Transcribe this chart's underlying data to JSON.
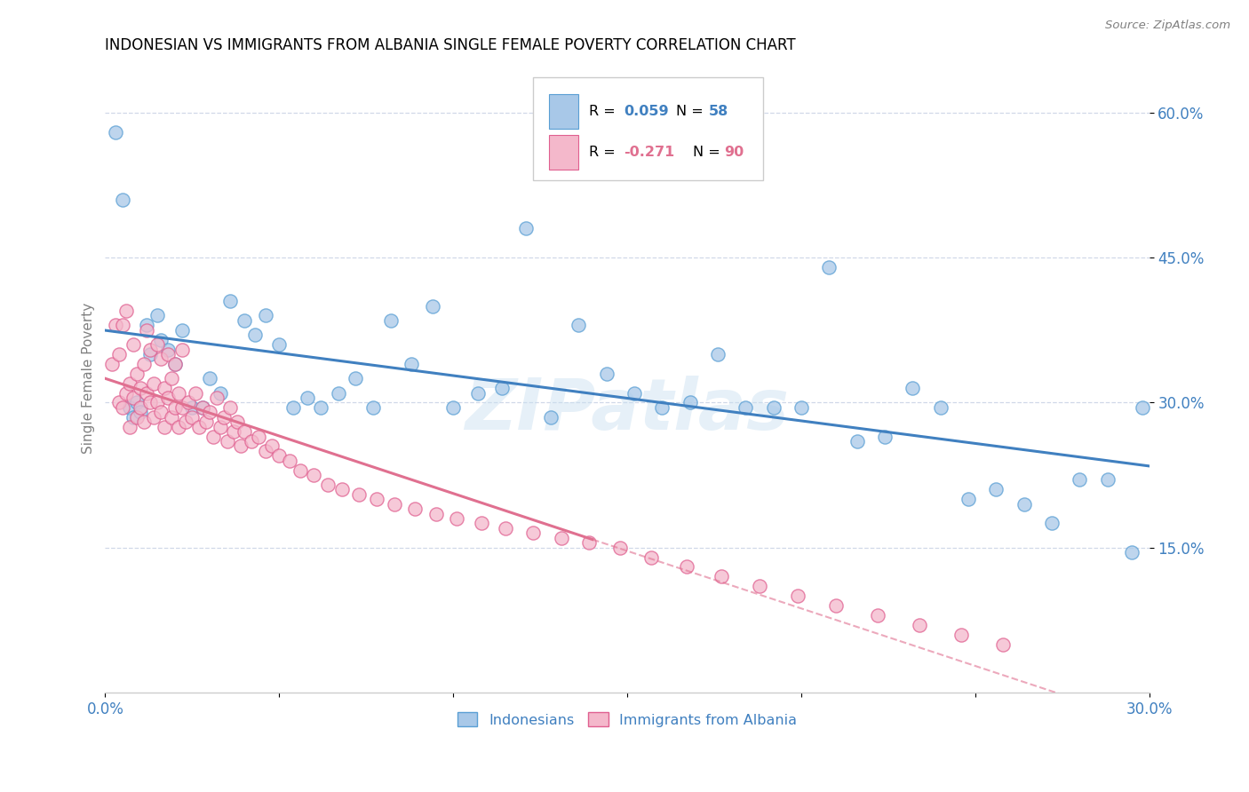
{
  "title": "INDONESIAN VS IMMIGRANTS FROM ALBANIA SINGLE FEMALE POVERTY CORRELATION CHART",
  "source": "Source: ZipAtlas.com",
  "ylabel": "Single Female Poverty",
  "xlim": [
    0.0,
    0.3
  ],
  "ylim": [
    0.0,
    0.65
  ],
  "xticks": [
    0.0,
    0.05,
    0.1,
    0.15,
    0.2,
    0.25,
    0.3
  ],
  "xtick_labels": [
    "0.0%",
    "",
    "",
    "",
    "",
    "",
    "30.0%"
  ],
  "yticks": [
    0.15,
    0.3,
    0.45,
    0.6
  ],
  "ytick_labels": [
    "15.0%",
    "30.0%",
    "45.0%",
    "60.0%"
  ],
  "watermark": "ZIPatlas",
  "color_blue": "#a8c8e8",
  "color_blue_edge": "#5a9fd4",
  "color_pink": "#f4b8cb",
  "color_pink_edge": "#e06090",
  "color_blue_line": "#4080c0",
  "color_pink_line": "#e07090",
  "color_tick_label": "#4080c0",
  "color_grid": "#d0d8e8",
  "indonesian_x": [
    0.003,
    0.005,
    0.007,
    0.008,
    0.009,
    0.01,
    0.012,
    0.013,
    0.015,
    0.016,
    0.018,
    0.02,
    0.022,
    0.025,
    0.028,
    0.03,
    0.033,
    0.036,
    0.04,
    0.043,
    0.046,
    0.05,
    0.054,
    0.058,
    0.062,
    0.067,
    0.072,
    0.077,
    0.082,
    0.088,
    0.094,
    0.1,
    0.107,
    0.114,
    0.121,
    0.128,
    0.136,
    0.144,
    0.152,
    0.16,
    0.168,
    0.176,
    0.184,
    0.192,
    0.2,
    0.208,
    0.216,
    0.224,
    0.232,
    0.24,
    0.248,
    0.256,
    0.264,
    0.272,
    0.28,
    0.288,
    0.295,
    0.298
  ],
  "indonesian_y": [
    0.58,
    0.51,
    0.295,
    0.285,
    0.3,
    0.29,
    0.38,
    0.35,
    0.39,
    0.365,
    0.355,
    0.34,
    0.375,
    0.295,
    0.295,
    0.325,
    0.31,
    0.405,
    0.385,
    0.37,
    0.39,
    0.36,
    0.295,
    0.305,
    0.295,
    0.31,
    0.325,
    0.295,
    0.385,
    0.34,
    0.4,
    0.295,
    0.31,
    0.315,
    0.48,
    0.285,
    0.38,
    0.33,
    0.31,
    0.295,
    0.3,
    0.35,
    0.295,
    0.295,
    0.295,
    0.44,
    0.26,
    0.265,
    0.315,
    0.295,
    0.2,
    0.21,
    0.195,
    0.175,
    0.22,
    0.22,
    0.145,
    0.295
  ],
  "albania_x": [
    0.002,
    0.003,
    0.004,
    0.004,
    0.005,
    0.005,
    0.006,
    0.006,
    0.007,
    0.007,
    0.008,
    0.008,
    0.009,
    0.009,
    0.01,
    0.01,
    0.011,
    0.011,
    0.012,
    0.012,
    0.013,
    0.013,
    0.014,
    0.014,
    0.015,
    0.015,
    0.016,
    0.016,
    0.017,
    0.017,
    0.018,
    0.018,
    0.019,
    0.019,
    0.02,
    0.02,
    0.021,
    0.021,
    0.022,
    0.022,
    0.023,
    0.024,
    0.025,
    0.026,
    0.027,
    0.028,
    0.029,
    0.03,
    0.031,
    0.032,
    0.033,
    0.034,
    0.035,
    0.036,
    0.037,
    0.038,
    0.039,
    0.04,
    0.042,
    0.044,
    0.046,
    0.048,
    0.05,
    0.053,
    0.056,
    0.06,
    0.064,
    0.068,
    0.073,
    0.078,
    0.083,
    0.089,
    0.095,
    0.101,
    0.108,
    0.115,
    0.123,
    0.131,
    0.139,
    0.148,
    0.157,
    0.167,
    0.177,
    0.188,
    0.199,
    0.21,
    0.222,
    0.234,
    0.246,
    0.258
  ],
  "albania_y": [
    0.34,
    0.38,
    0.3,
    0.35,
    0.295,
    0.38,
    0.31,
    0.395,
    0.32,
    0.275,
    0.305,
    0.36,
    0.285,
    0.33,
    0.315,
    0.295,
    0.34,
    0.28,
    0.31,
    0.375,
    0.3,
    0.355,
    0.285,
    0.32,
    0.3,
    0.36,
    0.29,
    0.345,
    0.275,
    0.315,
    0.305,
    0.35,
    0.285,
    0.325,
    0.295,
    0.34,
    0.275,
    0.31,
    0.295,
    0.355,
    0.28,
    0.3,
    0.285,
    0.31,
    0.275,
    0.295,
    0.28,
    0.29,
    0.265,
    0.305,
    0.275,
    0.285,
    0.26,
    0.295,
    0.27,
    0.28,
    0.255,
    0.27,
    0.26,
    0.265,
    0.25,
    0.255,
    0.245,
    0.24,
    0.23,
    0.225,
    0.215,
    0.21,
    0.205,
    0.2,
    0.195,
    0.19,
    0.185,
    0.18,
    0.175,
    0.17,
    0.165,
    0.16,
    0.155,
    0.15,
    0.14,
    0.13,
    0.12,
    0.11,
    0.1,
    0.09,
    0.08,
    0.07,
    0.06,
    0.05
  ]
}
